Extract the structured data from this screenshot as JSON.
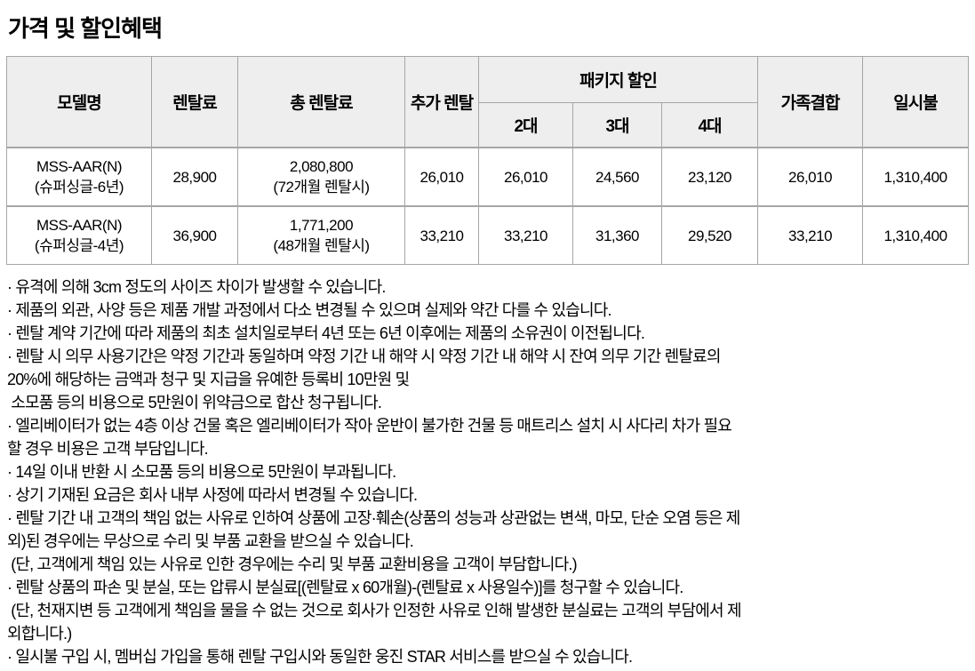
{
  "page": {
    "title": "가격 및 할인혜택"
  },
  "table": {
    "headers": {
      "model": "모델명",
      "rental_fee": "렌탈료",
      "total_rental_fee": "총 렌탈료",
      "additional_rental": "추가 렌탈",
      "package_discount": "패키지 할인",
      "package_2": "2대",
      "package_3": "3대",
      "package_4": "4대",
      "family_bundle": "가족결합",
      "lump_sum": "일시불"
    },
    "rows": [
      {
        "model_line1": "MSS-AAR(N)",
        "model_line2": "(슈퍼싱글-6년)",
        "rental_fee": "28,900",
        "total_line1": "2,080,800",
        "total_line2": "(72개월 렌탈시)",
        "additional_rental": "26,010",
        "package_2": "26,010",
        "package_3": "24,560",
        "package_4": "23,120",
        "family_bundle": "26,010",
        "lump_sum": "1,310,400"
      },
      {
        "model_line1": "MSS-AAR(N)",
        "model_line2": "(슈퍼싱글-4년)",
        "rental_fee": "36,900",
        "total_line1": "1,771,200",
        "total_line2": "(48개월 렌탈시)",
        "additional_rental": "33,210",
        "package_2": "33,210",
        "package_3": "31,360",
        "package_4": "29,520",
        "family_bundle": "33,210",
        "lump_sum": "1,310,400"
      }
    ]
  },
  "notes": {
    "lines": [
      "· 유격에 의해 3cm 정도의 사이즈 차이가 발생할 수 있습니다.",
      "· 제품의 외관, 사양 등은 제품 개발 과정에서 다소 변경될 수 있으며 실제와 약간 다를 수 있습니다.",
      "· 렌탈 계약 기간에 따라 제품의 최초 설치일로부터 4년 또는 6년 이후에는 제품의 소유권이 이전됩니다.",
      "· 렌탈 시 의무 사용기간은 약정 기간과 동일하며 약정 기간 내 해약 시 약정 기간 내 해약 시 잔여 의무 기간 렌탈료의",
      "20%에 해당하는 금액과 청구 및 지급을 유예한 등록비 10만원 및",
      " 소모품 등의 비용으로 5만원이 위약금으로 합산 청구됩니다.",
      "· 엘리베이터가 없는 4층 이상 건물 혹은 엘리베이터가 작아 운반이 불가한 건물 등 매트리스 설치 시 사다리 차가 필요",
      "할 경우 비용은 고객 부담입니다.",
      "· 14일 이내 반환 시 소모품 등의 비용으로 5만원이 부과됩니다.",
      "· 상기 기재된 요금은 회사 내부 사정에 따라서 변경될 수 있습니다.",
      "· 렌탈 기간 내 고객의 책임 없는 사유로 인하여 상품에 고장·훼손(상품의 성능과 상관없는 변색, 마모, 단순 오염 등은 제",
      "외)된 경우에는 무상으로 수리 및 부품 교환을 받으실 수 있습니다.",
      " (단, 고객에게 책임 있는 사유로 인한 경우에는 수리 및 부품 교환비용을 고객이 부담합니다.)",
      "· 렌탈 상품의 파손 및 분실, 또는 압류시 분실료[(렌탈료 x 60개월)-(렌탈료 x 사용일수)]를 청구할 수 있습니다.",
      " (단, 천재지변 등 고객에게 책임을 물을 수 없는 것으로 회사가 인정한 사유로 인해 발생한 분실료는 고객의 부담에서 제",
      "외합니다.)",
      "· 일시불 구입 시, 멤버십 가입을 통해 렌탈 구입시와 동일한 웅진 STAR 서비스를 받으실 수 있습니다."
    ]
  },
  "colors": {
    "header_bg": "#eeeeee",
    "border": "#a6a6a6",
    "text": "#000000",
    "page_bg": "#ffffff"
  }
}
